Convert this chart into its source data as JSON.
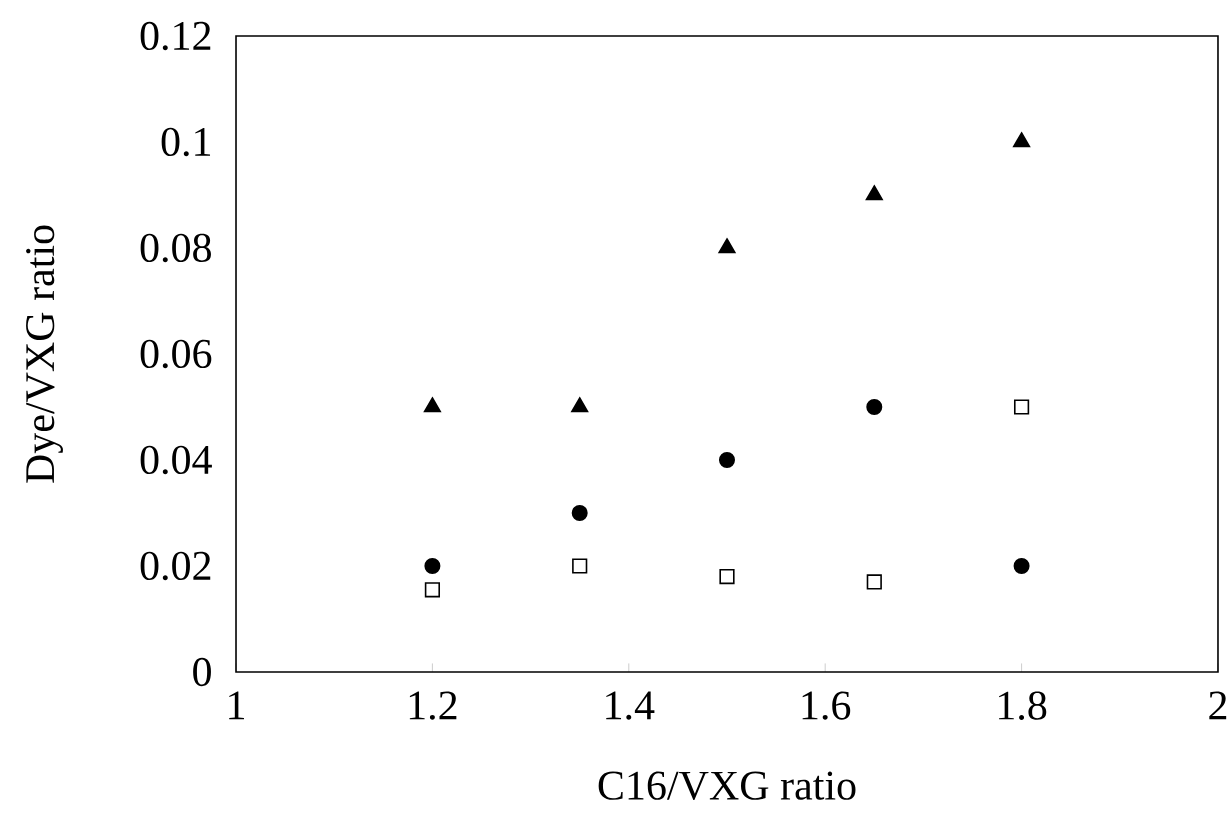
{
  "chart_data": {
    "type": "scatter",
    "xlabel": "C16/VXG ratio",
    "ylabel": "Dye/VXG ratio",
    "x": [
      1.2,
      1.35,
      1.5,
      1.65,
      1.8
    ],
    "series": [
      {
        "color": "#000000",
        "marker": "triangle",
        "values": [
          0.05,
          0.05,
          0.08,
          0.09,
          0.1
        ]
      },
      {
        "color": "#000000",
        "marker": "circle",
        "values": [
          0.02,
          0.03,
          0.04,
          0.05,
          0.02
        ]
      },
      {
        "color": "#000000",
        "marker": "square",
        "values": [
          0.0155,
          0.02,
          0.018,
          0.017,
          0.05
        ]
      }
    ],
    "xlim": [
      1,
      2
    ],
    "xticks": [
      1,
      1.2,
      1.4,
      1.6,
      1.8,
      2
    ],
    "ylim": [
      0,
      0.12
    ],
    "yticks": [
      0,
      0.02,
      0.04,
      0.06,
      0.08,
      0.1,
      0.12
    ],
    "grid": false
  }
}
